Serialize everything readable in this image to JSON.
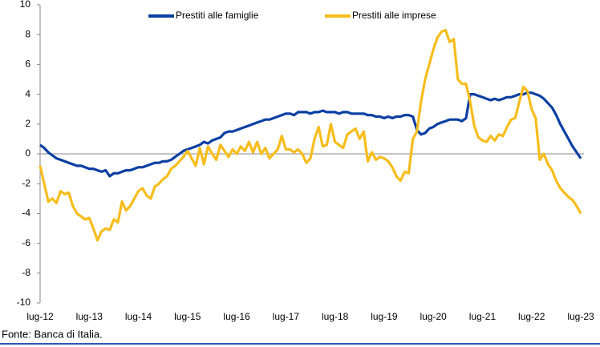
{
  "chart_data": {
    "type": "line",
    "source": "Fonte: Banca di Italia.",
    "categories": [
      "lug-12",
      null,
      null,
      null,
      null,
      null,
      null,
      null,
      null,
      null,
      null,
      null,
      "lug-13",
      null,
      null,
      null,
      null,
      null,
      null,
      null,
      null,
      null,
      null,
      null,
      "lug-14",
      null,
      null,
      null,
      null,
      null,
      null,
      null,
      null,
      null,
      null,
      null,
      "lug-15",
      null,
      null,
      null,
      null,
      null,
      null,
      null,
      null,
      null,
      null,
      null,
      "lug-16",
      null,
      null,
      null,
      null,
      null,
      null,
      null,
      null,
      null,
      null,
      null,
      "lug-17",
      null,
      null,
      null,
      null,
      null,
      null,
      null,
      null,
      null,
      null,
      null,
      "lug-18",
      null,
      null,
      null,
      null,
      null,
      null,
      null,
      null,
      null,
      null,
      null,
      "lug-19",
      null,
      null,
      null,
      null,
      null,
      null,
      null,
      null,
      null,
      null,
      null,
      "lug-20",
      null,
      null,
      null,
      null,
      null,
      null,
      null,
      null,
      null,
      null,
      null,
      "lug-21",
      null,
      null,
      null,
      null,
      null,
      null,
      null,
      null,
      null,
      null,
      null,
      "lug-22",
      null,
      null,
      null,
      null,
      null,
      null,
      null,
      null,
      null,
      null,
      null,
      "lug-23"
    ],
    "series": [
      {
        "name": "Prestiti alle famiglie",
        "color": "#0b3fa3",
        "values": [
          0.6,
          0.4,
          0.1,
          -0.1,
          -0.3,
          -0.4,
          -0.5,
          -0.6,
          -0.7,
          -0.8,
          -0.8,
          -0.9,
          -1.0,
          -1.0,
          -1.1,
          -1.2,
          -1.1,
          -1.5,
          -1.3,
          -1.3,
          -1.2,
          -1.1,
          -1.1,
          -1.0,
          -0.9,
          -0.9,
          -0.8,
          -0.7,
          -0.6,
          -0.6,
          -0.5,
          -0.5,
          -0.4,
          -0.2,
          0.0,
          0.2,
          0.3,
          0.4,
          0.5,
          0.6,
          0.8,
          0.7,
          0.9,
          1.0,
          1.1,
          1.4,
          1.5,
          1.5,
          1.6,
          1.7,
          1.8,
          1.9,
          2.0,
          2.1,
          2.2,
          2.3,
          2.3,
          2.4,
          2.5,
          2.6,
          2.7,
          2.7,
          2.6,
          2.8,
          2.8,
          2.8,
          2.7,
          2.8,
          2.8,
          2.9,
          2.8,
          2.8,
          2.8,
          2.7,
          2.8,
          2.8,
          2.7,
          2.7,
          2.7,
          2.7,
          2.6,
          2.6,
          2.5,
          2.5,
          2.4,
          2.5,
          2.4,
          2.5,
          2.5,
          2.6,
          2.6,
          2.5,
          1.6,
          1.3,
          1.4,
          1.7,
          1.8,
          2.0,
          2.1,
          2.2,
          2.3,
          2.3,
          2.3,
          2.2,
          2.4,
          4.0,
          4.0,
          3.9,
          3.8,
          3.7,
          3.6,
          3.7,
          3.6,
          3.7,
          3.8,
          3.8,
          3.9,
          4.0,
          4.0,
          4.1,
          4.1,
          4.0,
          3.9,
          3.7,
          3.4,
          3.1,
          2.6,
          2.0,
          1.5,
          1.0,
          0.5,
          0.1,
          -0.3
        ]
      },
      {
        "name": "Prestiti alle imprese",
        "color": "#f7bd1d",
        "values": [
          -0.8,
          -2,
          -3.2,
          -3,
          -3.3,
          -2.5,
          -2.7,
          -2.6,
          -3.5,
          -4,
          -4.2,
          -4.4,
          -4.3,
          -5,
          -5.8,
          -5.2,
          -5,
          -5.1,
          -4.4,
          -4.6,
          -3.2,
          -3.8,
          -3.5,
          -3,
          -2.5,
          -2.3,
          -2.8,
          -3,
          -2.2,
          -2,
          -1.7,
          -1.5,
          -1,
          -0.8,
          -0.5,
          -0.2,
          0.2,
          -0.3,
          -0.8,
          0.4,
          -0.7,
          0.5,
          0,
          -0.4,
          0.6,
          0.2,
          -0.2,
          0.3,
          0,
          0.5,
          0.2,
          0.8,
          0.1,
          0.8,
          0,
          0.4,
          -0.3,
          0,
          0.3,
          1.2,
          0.3,
          0.3,
          0.1,
          0.3,
          0,
          -0.6,
          -0.3,
          1.0,
          1.8,
          0.5,
          0.6,
          2.0,
          0.8,
          0.6,
          0.4,
          1.3,
          1.5,
          1.7,
          1.0,
          1.5,
          -0.5,
          0.1,
          -0.4,
          -0.2,
          -0.3,
          -0.5,
          -0.9,
          -1.5,
          -1.8,
          -1.2,
          -1.3,
          1.0,
          1.5,
          3.5,
          5,
          6,
          7,
          7.8,
          8.2,
          8.3,
          7.5,
          7.7,
          5.0,
          4.7,
          4.7,
          3.5,
          1.9,
          1.1,
          0.9,
          0.8,
          1.2,
          0.9,
          1.3,
          1.2,
          1.8,
          2.3,
          2.4,
          3.5,
          4.5,
          4.2,
          3.0,
          2.4,
          -0.4,
          0,
          -0.7,
          -1.1,
          -1.8,
          -2.3,
          -2.6,
          -2.9,
          -3.1,
          -3.5,
          -4.0
        ]
      }
    ],
    "ylim": [
      -10,
      10
    ],
    "yticks": [
      -10,
      -8,
      -6,
      -4,
      -2,
      0,
      2,
      4,
      6,
      8,
      10
    ]
  }
}
